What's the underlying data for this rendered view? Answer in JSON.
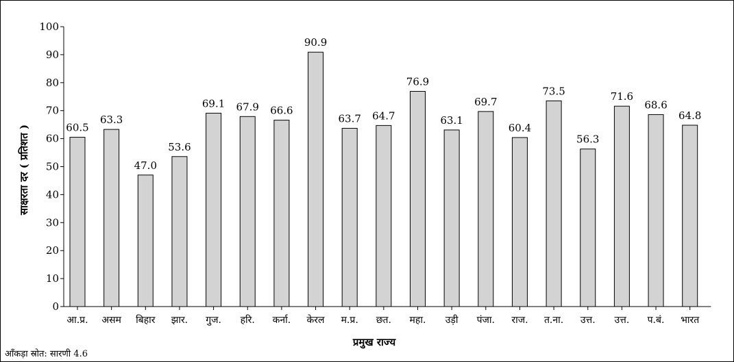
{
  "chart_data": {
    "type": "bar",
    "categories": [
      "आ.प्र.",
      "असम",
      "बिहार",
      "झार.",
      "गुज.",
      "हरि.",
      "कर्ना.",
      "केरल",
      "म.प्र.",
      "छत.",
      "महा.",
      "उड़ी",
      "पंजा.",
      "राज.",
      "त.ना.",
      "उत्त.",
      "उत्त.",
      "प.बं.",
      "भारत"
    ],
    "values": [
      60.5,
      63.3,
      47.0,
      53.6,
      69.1,
      67.9,
      66.6,
      90.9,
      63.7,
      64.7,
      76.9,
      63.1,
      69.7,
      60.4,
      73.5,
      56.3,
      71.6,
      68.6,
      64.8
    ],
    "value_labels": [
      "60.5",
      "63.3",
      "47.0",
      "53.6",
      "69.1",
      "67.9",
      "66.6",
      "90.9",
      "63.7",
      "64.7",
      "76.9",
      "63.1",
      "69.7",
      "60.4",
      "73.5",
      "56.3",
      "71.6",
      "68.6",
      "64.8"
    ],
    "title": "",
    "xlabel": "प्रमुख राज्य",
    "ylabel": "साक्षरता दर ( प्रतिशत )",
    "ylim": [
      0,
      100
    ],
    "yticks": [
      "0",
      "10",
      "20",
      "30",
      "40",
      "50",
      "60",
      "70",
      "80",
      "90",
      "100"
    ],
    "grid": false,
    "bar_color": "#d3d3d3"
  },
  "source_note": "आँकड़ा स्रोत: सारणी 4.6"
}
